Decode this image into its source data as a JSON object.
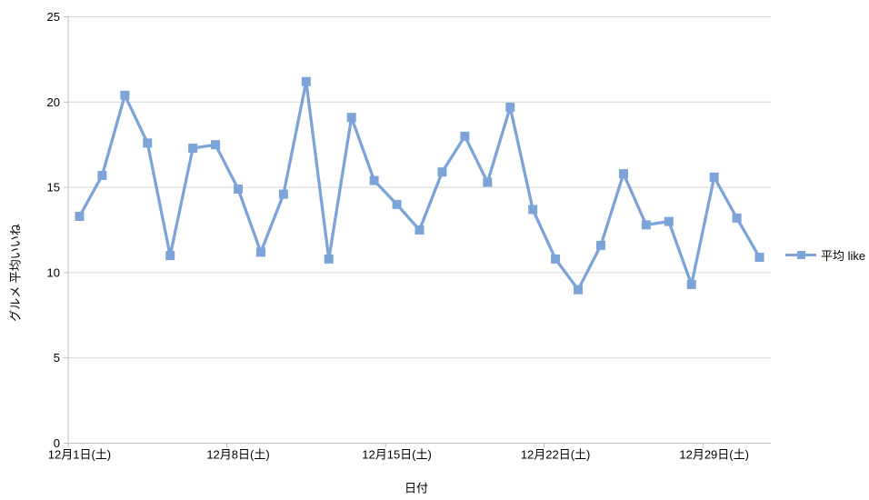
{
  "chart_data": {
    "type": "line",
    "xlabel": "日付",
    "ylabel": "グルメ 平均いいね",
    "legend": "平均 like",
    "legend_position": "right",
    "grid": true,
    "ylim": [
      0,
      25
    ],
    "yticks": [
      0,
      5,
      10,
      15,
      20,
      25
    ],
    "x_visible_tick_labels": [
      "12月1日(土)",
      "12月8日(土)",
      "12月15日(土)",
      "12月22日(土)",
      "12月29日(土)"
    ],
    "xtick_label_indices": [
      0,
      7,
      14,
      21,
      28
    ],
    "categories": [
      "12月1日",
      "12月2日",
      "12月3日",
      "12月4日",
      "12月5日",
      "12月6日",
      "12月7日",
      "12月8日",
      "12月9日",
      "12月10日",
      "12月11日",
      "12月12日",
      "12月13日",
      "12月14日",
      "12月15日",
      "12月16日",
      "12月17日",
      "12月18日",
      "12月19日",
      "12月20日",
      "12月21日",
      "12月22日",
      "12月23日",
      "12月24日",
      "12月25日",
      "12月26日",
      "12月27日",
      "12月28日",
      "12月29日",
      "12月30日",
      "12月31日"
    ],
    "series": [
      {
        "name": "平均 like",
        "values": [
          13.3,
          15.7,
          20.4,
          17.6,
          11.0,
          17.3,
          17.5,
          14.9,
          11.2,
          14.6,
          21.2,
          10.8,
          19.1,
          15.4,
          14.0,
          12.5,
          15.9,
          18.0,
          15.3,
          19.7,
          13.7,
          10.8,
          9.0,
          11.6,
          15.8,
          12.8,
          13.0,
          9.3,
          15.6,
          13.2,
          10.9
        ]
      }
    ],
    "colors": {
      "series": "#7DA4D8",
      "gridline": "#D7D7D7",
      "axis": "#BFBFBF",
      "text": "#000000",
      "background": "#FFFFFF"
    }
  }
}
